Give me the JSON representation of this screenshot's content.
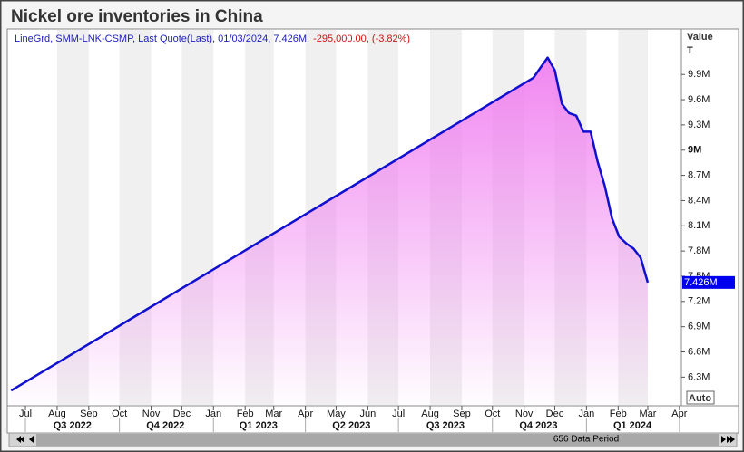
{
  "chart_data": {
    "type": "line",
    "title": "Nickel ore inventories in China",
    "info_text": "LineGrd, SMM-LNK-CSMP, Last Quote(Last), 01/03/2024, 7.426M,",
    "change_text": "-295,000.00, (-3.82%)",
    "y_axis_label": "Value",
    "y_axis_unit": "T",
    "last_label": "7.426M",
    "auto_button": "Auto",
    "scroll_label": "656 Data Period",
    "xlim": [
      "2022-06-15",
      "2024-04-02"
    ],
    "ylim": [
      5970000,
      10430000
    ],
    "xticks": [
      {
        "value": "2022-07-01",
        "label": "Jul"
      },
      {
        "value": "2022-08-01",
        "label": "Aug"
      },
      {
        "value": "2022-09-01",
        "label": "Sep"
      },
      {
        "value": "2022-10-01",
        "label": "Oct"
      },
      {
        "value": "2022-11-01",
        "label": "Nov"
      },
      {
        "value": "2022-12-01",
        "label": "Dec"
      },
      {
        "value": "2023-01-01",
        "label": "Jan"
      },
      {
        "value": "2023-02-01",
        "label": "Feb"
      },
      {
        "value": "2023-03-01",
        "label": "Mar"
      },
      {
        "value": "2023-04-01",
        "label": "Apr"
      },
      {
        "value": "2023-05-01",
        "label": "May"
      },
      {
        "value": "2023-06-01",
        "label": "Jun"
      },
      {
        "value": "2023-07-01",
        "label": "Jul"
      },
      {
        "value": "2023-08-01",
        "label": "Aug"
      },
      {
        "value": "2023-09-01",
        "label": "Sep"
      },
      {
        "value": "2023-10-01",
        "label": "Oct"
      },
      {
        "value": "2023-11-01",
        "label": "Nov"
      },
      {
        "value": "2023-12-01",
        "label": "Dec"
      },
      {
        "value": "2024-01-01",
        "label": "Jan"
      },
      {
        "value": "2024-02-01",
        "label": "Feb"
      },
      {
        "value": "2024-03-01",
        "label": "Mar"
      },
      {
        "value": "2024-04-01",
        "label": "Apr"
      }
    ],
    "quarter_ticks": [
      {
        "value": "2022-08-16",
        "label": "Q3 2022"
      },
      {
        "value": "2022-11-15",
        "label": "Q4 2022"
      },
      {
        "value": "2023-02-14",
        "label": "Q1 2023"
      },
      {
        "value": "2023-05-16",
        "label": "Q2 2023"
      },
      {
        "value": "2023-08-16",
        "label": "Q3 2023"
      },
      {
        "value": "2023-11-15",
        "label": "Q4 2023"
      },
      {
        "value": "2024-02-15",
        "label": "Q1 2024"
      }
    ],
    "yticks": [
      {
        "value": 6300000,
        "label": "6.3M"
      },
      {
        "value": 6600000,
        "label": "6.6M"
      },
      {
        "value": 6900000,
        "label": "6.9M"
      },
      {
        "value": 7200000,
        "label": "7.2M"
      },
      {
        "value": 7500000,
        "label": "7.5M"
      },
      {
        "value": 7800000,
        "label": "7.8M"
      },
      {
        "value": 8100000,
        "label": "8.1M"
      },
      {
        "value": 8400000,
        "label": "8.4M"
      },
      {
        "value": 8700000,
        "label": "8.7M"
      },
      {
        "value": 9000000,
        "label": "9M"
      },
      {
        "value": 9300000,
        "label": "9.3M"
      },
      {
        "value": 9600000,
        "label": "9.6M"
      },
      {
        "value": 9900000,
        "label": "9.9M"
      }
    ],
    "x": [
      "2022-06-17",
      "2023-11-10",
      "2023-11-17",
      "2023-11-24",
      "2023-12-01",
      "2023-12-08",
      "2023-12-15",
      "2023-12-22",
      "2023-12-29",
      "2024-01-05",
      "2024-01-12",
      "2024-01-19",
      "2024-01-26",
      "2024-02-02",
      "2024-02-09",
      "2024-02-16",
      "2024-02-23",
      "2024-03-01"
    ],
    "series": [
      {
        "name": "SMM-LNK-CSMP",
        "color": "#1010d0",
        "values": [
          6140000,
          9860000,
          9980000,
          10100000,
          9950000,
          9550000,
          9440000,
          9410000,
          9220000,
          9220000,
          8860000,
          8570000,
          8190000,
          7970000,
          7890000,
          7830000,
          7721000,
          7426000
        ]
      }
    ],
    "area_color": "#f080f0",
    "band_color": "#f0f0f0"
  }
}
